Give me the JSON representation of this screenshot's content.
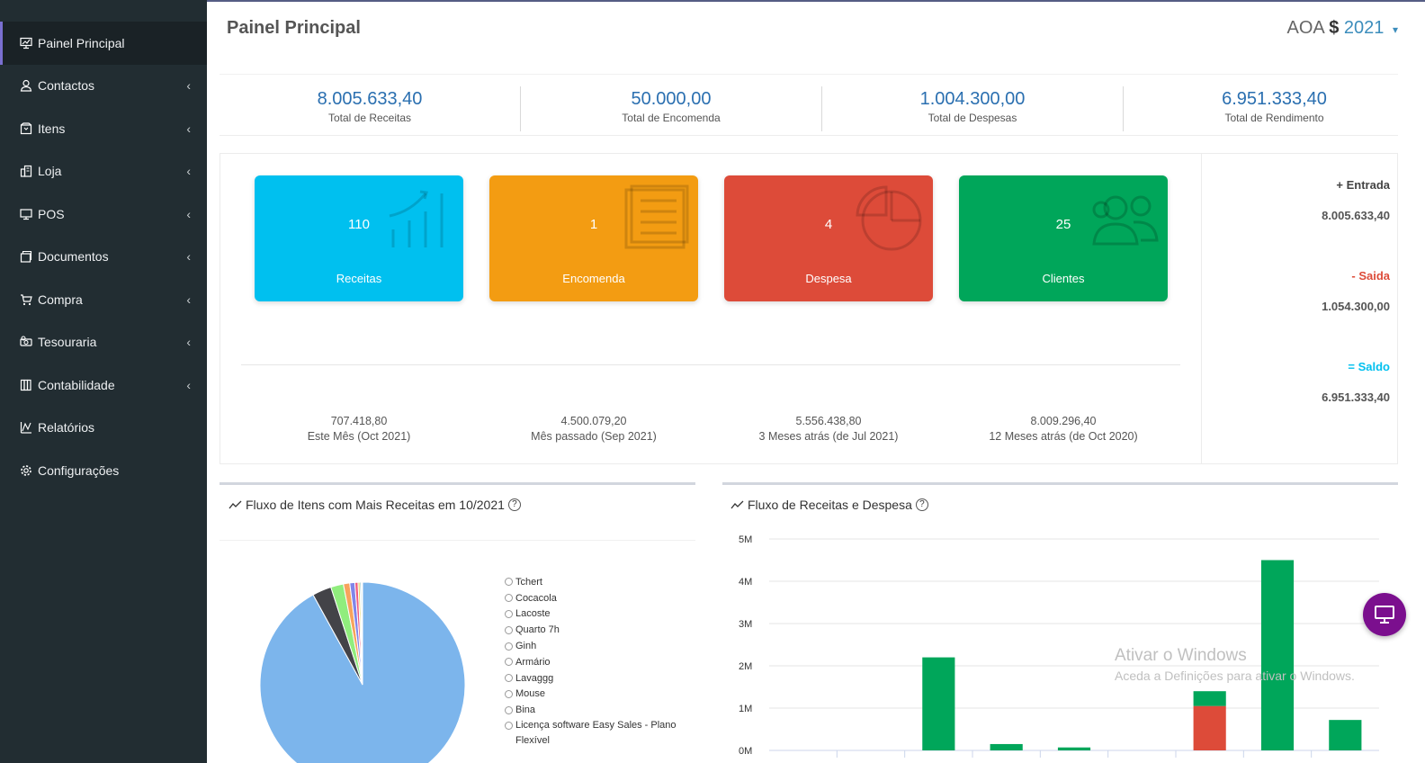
{
  "sidebar": {
    "items": [
      {
        "label": "Painel Principal",
        "icon": "monitor-chart-icon",
        "active": true,
        "chevron": false
      },
      {
        "label": "Contactos",
        "icon": "user-icon",
        "chevron": true
      },
      {
        "label": "Itens",
        "icon": "box-icon",
        "chevron": true
      },
      {
        "label": "Loja",
        "icon": "store-icon",
        "chevron": true
      },
      {
        "label": "POS",
        "icon": "desktop-icon",
        "chevron": true
      },
      {
        "label": "Documentos",
        "icon": "documents-icon",
        "chevron": true
      },
      {
        "label": "Compra",
        "icon": "cart-icon",
        "chevron": true
      },
      {
        "label": "Tesouraria",
        "icon": "money-icon",
        "chevron": true
      },
      {
        "label": "Contabilidade",
        "icon": "books-icon",
        "chevron": true
      },
      {
        "label": "Relatórios",
        "icon": "reports-icon",
        "chevron": false
      },
      {
        "label": "Configurações",
        "icon": "gear-icon",
        "chevron": false
      }
    ],
    "chevron_glyph": "‹"
  },
  "header": {
    "title": "Painel Principal",
    "currency_code": "AOA",
    "currency_sign": "$",
    "year": "2021",
    "caret": "▾"
  },
  "stats": [
    {
      "value": "8.005.633,40",
      "label": "Total de Receitas"
    },
    {
      "value": "50.000,00",
      "label": "Total de Encomenda"
    },
    {
      "value": "1.004.300,00",
      "label": "Total de Despesas"
    },
    {
      "value": "6.951.333,40",
      "label": "Total de Rendimento"
    }
  ],
  "cards": [
    {
      "number": "110",
      "label": "Receitas",
      "color": "#00c0ef",
      "icon": "growth-chart-icon"
    },
    {
      "number": "1",
      "label": "Encomenda",
      "color": "#f39c12",
      "icon": "document-list-icon"
    },
    {
      "number": "4",
      "label": "Despesa",
      "color": "#dd4b39",
      "icon": "pie-chart-icon"
    },
    {
      "number": "25",
      "label": "Clientes",
      "color": "#00a65a",
      "icon": "users-icon"
    }
  ],
  "periods": [
    {
      "value": "707.418,80",
      "label": "Este Mês (Oct 2021)"
    },
    {
      "value": "4.500.079,20",
      "label": "Mês passado (Sep 2021)"
    },
    {
      "value": "5.556.438,80",
      "label": "3 Meses atrás (de Jul 2021)"
    },
    {
      "value": "8.009.296,40",
      "label": "12 Meses atrás (de Oct 2020)"
    }
  ],
  "summary": {
    "entrada_label": "+ Entrada",
    "entrada_value": "8.005.633,40",
    "saida_label": "- Saida",
    "saida_value": "1.054.300,00",
    "saldo_label": "= Saldo",
    "saldo_value": "6.951.333,40",
    "colors": {
      "entrada": "#444444",
      "saida": "#dd4b39",
      "saldo": "#00c0ef"
    }
  },
  "pie_panel": {
    "title": "Fluxo de Itens com Mais Receitas em 10/2021",
    "help": "?",
    "legend": [
      "Tchert",
      "Cocacola",
      "Lacoste",
      "Quarto 7h",
      "Ginh",
      "Armário",
      "Lavaggg",
      "Mouse",
      "Bina",
      "Licença software Easy Sales - Plano Flexível"
    ]
  },
  "bar_panel": {
    "title": "Fluxo de Receitas e Despesa",
    "help": "?"
  },
  "chart_data": [
    {
      "type": "pie",
      "labels": [
        "Tchert",
        "Cocacola",
        "Lacoste",
        "Quarto 7h",
        "Ginh",
        "Armário",
        "Lavaggg",
        "Mouse",
        "Bina",
        "Licença software Easy Sales - Plano Flexível"
      ],
      "values": [
        92.0,
        3.0,
        2.0,
        1.0,
        0.8,
        0.5,
        0.3,
        0.2,
        0.1,
        0.1
      ],
      "colors": [
        "#7cb5ec",
        "#434348",
        "#90ed7d",
        "#f7a35c",
        "#8085e9",
        "#f15c80",
        "#e4d354",
        "#2b908f",
        "#f45b5b",
        "#91e8e1"
      ]
    },
    {
      "type": "bar",
      "stacked": true,
      "categories": [
        "",
        "",
        "",
        "",
        "",
        "",
        "",
        "",
        ""
      ],
      "series": [
        {
          "values": [
            0,
            0,
            2200000,
            150000,
            70000,
            0,
            350000,
            4500000,
            720000
          ],
          "color": "#00a65a"
        },
        {
          "values": [
            0,
            0,
            0,
            0,
            0,
            0,
            1050000,
            0,
            0
          ],
          "color": "#dd4b39"
        }
      ],
      "y_ticks": [
        "0M",
        "1M",
        "2M",
        "3M",
        "4M",
        "5M"
      ],
      "ylim": [
        0,
        5000000
      ],
      "grid": true
    }
  ],
  "watermark": {
    "line1": "Ativar o Windows",
    "line2": "Aceda a Definições para ativar o Windows."
  },
  "fab_icon": "monitor-icon"
}
